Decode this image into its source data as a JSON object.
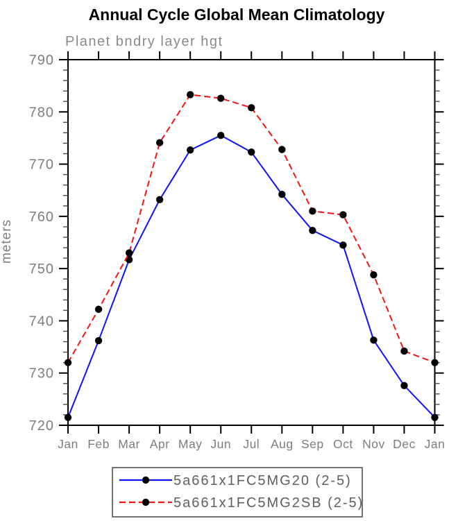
{
  "chart_data": {
    "type": "line",
    "title": "Annual Cycle Global Mean Climatology",
    "subtitle": "Planet bndry layer hgt",
    "ylabel": "meters",
    "xlabel": "",
    "ylim": [
      720,
      790
    ],
    "ytick_major_step": 10,
    "ytick_minor_step": 2,
    "ytick_labels": [
      "720",
      "730",
      "740",
      "750",
      "760",
      "770",
      "780",
      "790"
    ],
    "grid": "off",
    "legend_position": "bottom-center",
    "frame_color": "#000000",
    "tick_label_color": "#7d7d7d",
    "marker_color": "#000000",
    "categories": [
      "Jan",
      "Feb",
      "Mar",
      "Apr",
      "May",
      "Jun",
      "Jul",
      "Aug",
      "Sep",
      "Oct",
      "Nov",
      "Dec",
      "Jan"
    ],
    "series": [
      {
        "name": "5a661x1FC5MG20 (2-5)",
        "color": "#0f0fff",
        "line_style": "solid",
        "marker": "filled-circle",
        "values": [
          721.5,
          736.2,
          751.7,
          763.2,
          772.7,
          775.5,
          772.3,
          764.2,
          757.3,
          754.5,
          736.3,
          727.6,
          721.5
        ]
      },
      {
        "name": "5a661x1FC5MG2SB (2-5)",
        "color": "#f51111",
        "line_style": "dashed",
        "marker": "filled-circle",
        "values": [
          732.0,
          742.2,
          753.0,
          774.1,
          783.3,
          782.6,
          780.8,
          772.8,
          761.0,
          760.3,
          748.8,
          734.2,
          732.0
        ]
      }
    ]
  }
}
